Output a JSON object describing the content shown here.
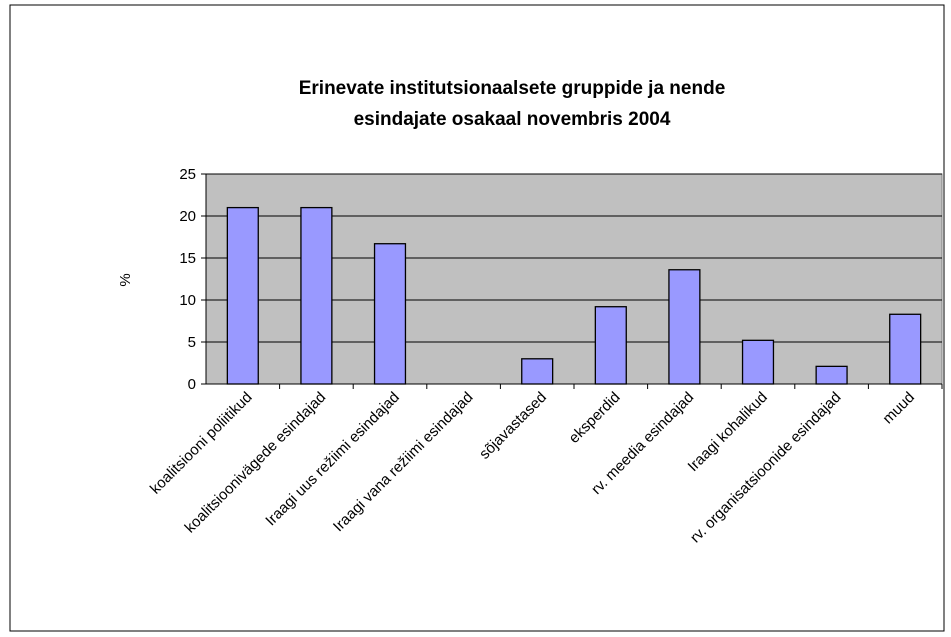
{
  "chart_data": {
    "type": "bar",
    "title": [
      "Erinevate institutsionaalsete gruppide ja nende",
      "esindajate osakaal novembris 2004"
    ],
    "ylabel": "%",
    "categories": [
      "koalitsiooni poliitikud",
      "koalitsioonivägede esindajad",
      "Iraagi uus režiimi esindajad",
      "Iraagi vana režiimi esindajad",
      "sõjavastased",
      "eksperdid",
      "rv. meedia esindajad",
      "Iraagi kohalikud",
      "rv. organisatsioonide esindajad",
      "muud"
    ],
    "values": [
      21,
      21,
      16.7,
      0,
      3,
      9.2,
      13.6,
      5.2,
      2.1,
      8.3
    ],
    "color": "#9999ff",
    "plot_background": "#c0c0c0",
    "ylim": [
      0,
      25
    ],
    "yticks": [
      0,
      5,
      10,
      15,
      20,
      25
    ],
    "grid": true
  }
}
